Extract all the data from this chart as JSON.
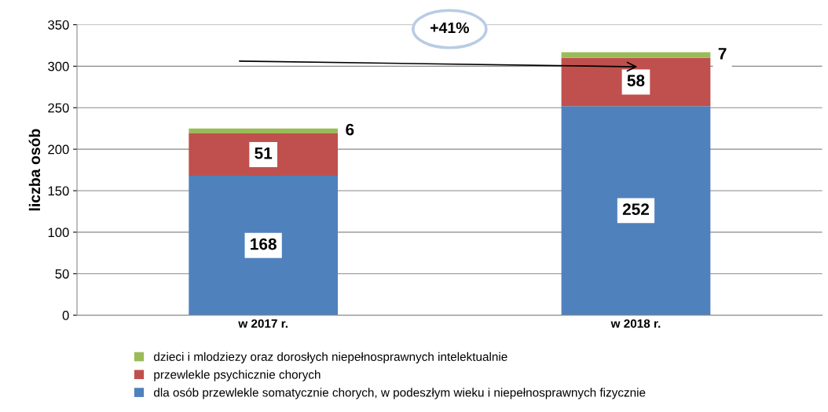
{
  "chart_data": {
    "type": "bar",
    "stacked": true,
    "ylabel": "liczba osób",
    "categories": [
      "w 2017 r.",
      "w 2018 r."
    ],
    "series": [
      {
        "name": "dla osób przewlekle somatycznie chorych, w podeszłym wieku i niepełnosprawnych fizycznie",
        "color": "#4f81bd",
        "values": [
          168,
          252
        ]
      },
      {
        "name": "przewlekle psychicznie chorych",
        "color": "#c0504d",
        "values": [
          51,
          58
        ]
      },
      {
        "name": "dzieci i mlodziezy oraz dorosłych niepełnosprawnych intelektualnie",
        "color": "#9bbb59",
        "values": [
          6,
          7
        ]
      }
    ],
    "ylim": [
      0,
      350
    ],
    "yticks": [
      0,
      50,
      100,
      150,
      200,
      250,
      300,
      350
    ],
    "grid": "y",
    "legend": "bottom",
    "data_labels": true,
    "annotations": [
      "+41%"
    ]
  }
}
